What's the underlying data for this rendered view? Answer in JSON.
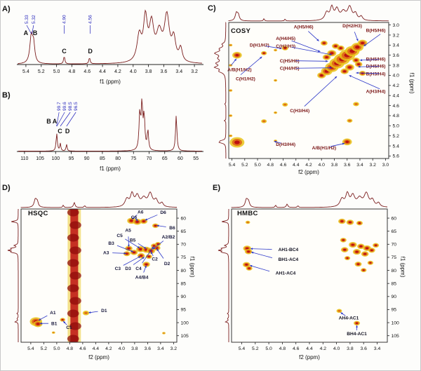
{
  "panels": {
    "A": {
      "label": "A)",
      "xlabel": "f1 (ppm)"
    },
    "B": {
      "label": "B)",
      "xlabel": "f1 (ppm)"
    },
    "C": {
      "label": "C)",
      "name": "COSY",
      "xlabel": "f2 (ppm)",
      "ylabel": "f1 (ppm)"
    },
    "D": {
      "label": "D)",
      "name": "HSQC",
      "xlabel": "f2 (ppm)",
      "ylabel": "f1 (ppm)"
    },
    "E": {
      "label": "E)",
      "name": "HMBC",
      "xlabel": "f2 (ppm)",
      "ylabel": "f1 (ppm)"
    }
  },
  "colors": {
    "spectrum": "#7b1e1e",
    "shift_label": "#2222bb",
    "contour_outer": "#e9c419",
    "contour_mid": "#e06a16",
    "contour_inner": "#bc1111",
    "arrow": "#2a35c8"
  },
  "spectra": {
    "h1": {
      "peaks": [
        [
          5.33,
          0.52,
          0.022
        ],
        [
          5.3,
          0.34,
          0.018
        ],
        [
          4.9,
          0.15,
          0.01
        ],
        [
          4.57,
          0.12,
          0.01
        ],
        [
          3.92,
          0.5,
          0.035
        ],
        [
          3.84,
          0.8,
          0.03
        ],
        [
          3.76,
          0.68,
          0.035
        ],
        [
          3.66,
          0.52,
          0.045
        ],
        [
          3.56,
          0.85,
          0.04
        ],
        [
          3.47,
          0.42,
          0.03
        ],
        [
          3.38,
          0.26,
          0.025
        ]
      ]
    },
    "c13": {
      "peaks": [
        [
          99.7,
          0.17,
          0.22
        ],
        [
          99.6,
          0.15,
          0.22
        ],
        [
          98.5,
          0.13,
          0.2
        ],
        [
          96.5,
          0.12,
          0.2
        ],
        [
          73.0,
          0.62,
          0.28
        ],
        [
          72.3,
          0.78,
          0.28
        ],
        [
          71.6,
          0.58,
          0.28
        ],
        [
          70.4,
          0.34,
          0.26
        ],
        [
          61.3,
          0.62,
          0.26
        ]
      ]
    }
  },
  "chart_data": [
    {
      "id": "A",
      "type": "line",
      "kind": "1H NMR spectrum",
      "x_label": "f1 (ppm)",
      "x_range": [
        5.5,
        3.1
      ],
      "x_ticks": [
        "5.4",
        "5.2",
        "5.0",
        "4.8",
        "4.6",
        "4.4",
        "4.2",
        "4.0",
        "3.8",
        "3.6",
        "3.4",
        "3.2"
      ],
      "spectrum_ref": "h1",
      "shift_labels": [
        {
          "text": "5.33",
          "at": 5.33,
          "lx": 5.39
        },
        {
          "text": "5.32",
          "at": 5.32,
          "lx": 5.3
        },
        {
          "text": "4.90",
          "at": 4.9
        },
        {
          "text": "4.56",
          "at": 4.56
        }
      ],
      "letters": [
        {
          "text": "A",
          "x": 5.4,
          "y": 50
        },
        {
          "text": "B",
          "x": 5.28,
          "y": 50
        },
        {
          "text": "C",
          "x": 4.9,
          "y": 76
        },
        {
          "text": "D",
          "x": 4.56,
          "y": 76
        }
      ]
    },
    {
      "id": "B",
      "type": "line",
      "kind": "13C NMR spectrum",
      "x_label": "f1 (ppm)",
      "x_range": [
        112,
        53
      ],
      "x_ticks": [
        "110",
        "105",
        "100",
        "95",
        "90",
        "85",
        "80",
        "75",
        "70",
        "65",
        "60",
        "55"
      ],
      "spectrum_ref": "c13",
      "shift_labels": [
        {
          "text": "99.7",
          "at": 99.7,
          "lx": 98.9
        },
        {
          "text": "99.6",
          "at": 99.6,
          "lx": 97.1
        },
        {
          "text": "98.5",
          "at": 98.5,
          "lx": 95.3
        },
        {
          "text": "96.5",
          "at": 96.5,
          "lx": 93.5
        }
      ],
      "letters": [
        {
          "text": "B",
          "x": 102.2,
          "y": 52
        },
        {
          "text": "A",
          "x": 100.3,
          "y": 52
        },
        {
          "text": "C",
          "x": 98.6,
          "y": 66
        },
        {
          "text": "D",
          "x": 96.2,
          "y": 66
        }
      ]
    },
    {
      "id": "C",
      "type": "heatmap",
      "kind": "COSY 2D spectrum",
      "x_label": "f2 (ppm)",
      "y_label": "f1 (ppm)",
      "x_range": [
        5.45,
        2.95
      ],
      "y_range": [
        2.95,
        5.65
      ],
      "x_ticks": [
        "5.4",
        "5.2",
        "5.0",
        "4.8",
        "4.6",
        "4.4",
        "4.2",
        "4.0",
        "3.8",
        "3.6",
        "3.4",
        "3.2",
        "3.0"
      ],
      "y_ticks": [
        "3.0",
        "3.2",
        "3.4",
        "3.6",
        "3.8",
        "4.0",
        "4.2",
        "4.4",
        "4.6",
        "4.8",
        "5.0",
        "5.2",
        "5.4",
        "5.6"
      ],
      "top_trace_ref": "h1",
      "left_trace_ref": "h1",
      "label_color": "#7a1515",
      "peaks": [
        [
          5.32,
          5.33,
          5.5
        ],
        [
          4.9,
          4.91,
          2.2,
          1
        ],
        [
          4.57,
          4.58,
          2.2,
          1
        ],
        [
          4.0,
          4.0,
          3.2
        ],
        [
          3.92,
          3.92,
          4.2
        ],
        [
          3.84,
          3.84,
          5.0
        ],
        [
          3.76,
          3.76,
          5.6
        ],
        [
          3.68,
          3.68,
          6.0
        ],
        [
          3.6,
          3.6,
          6.0
        ],
        [
          3.52,
          3.52,
          5.4
        ],
        [
          3.44,
          3.44,
          4.6
        ],
        [
          3.36,
          3.36,
          3.6
        ],
        [
          3.84,
          3.56,
          3.4
        ],
        [
          3.56,
          3.84,
          3.4
        ],
        [
          3.92,
          3.64,
          3.0
        ],
        [
          3.64,
          3.92,
          3.0
        ],
        [
          3.78,
          3.42,
          2.8
        ],
        [
          3.42,
          3.78,
          2.8
        ],
        [
          3.96,
          3.36,
          2.6
        ],
        [
          3.36,
          3.96,
          2.6
        ],
        [
          3.7,
          3.46,
          2.8
        ],
        [
          3.46,
          3.7,
          2.8
        ],
        [
          5.32,
          3.6,
          3.6
        ],
        [
          3.6,
          5.32,
          3.6
        ],
        [
          4.9,
          3.56,
          2.2
        ],
        [
          3.56,
          4.9,
          2.2,
          1
        ],
        [
          4.57,
          3.46,
          2.4
        ],
        [
          3.46,
          4.57,
          2.4,
          1
        ],
        [
          5.42,
          3.4,
          1.4,
          1
        ],
        [
          5.42,
          3.8,
          1.4,
          1
        ],
        [
          5.42,
          4.3,
          1.4,
          1
        ],
        [
          5.42,
          4.8,
          1.4,
          1
        ],
        [
          5.42,
          5.2,
          1.4,
          1
        ],
        [
          4.72,
          3.5,
          1.4,
          1
        ],
        [
          4.72,
          4.1,
          1.4,
          1
        ],
        [
          4.72,
          4.74,
          1.4,
          1
        ],
        [
          4.72,
          5.3,
          1.4,
          1
        ]
      ],
      "labels": [
        [
          "A(H5/H6)",
          4.28,
          3.07,
          4.04,
          3.32,
          "middle"
        ],
        [
          "D(H2/H3)",
          3.52,
          3.05,
          3.43,
          3.32,
          "middle"
        ],
        [
          "B(H5/H6)",
          3.0,
          3.14,
          3.34,
          3.42,
          "end"
        ],
        [
          "D(H1/H2)",
          4.97,
          3.43,
          4.62,
          3.47,
          "middle"
        ],
        [
          "A(H4/H5)",
          4.56,
          3.3,
          4.02,
          3.53,
          "middle"
        ],
        [
          "C(H2/H3)",
          4.56,
          3.45,
          3.84,
          3.59,
          "middle"
        ],
        [
          "C(H5/H6)",
          4.5,
          3.74,
          3.9,
          3.72,
          "middle"
        ],
        [
          "C(H4/H5)",
          4.5,
          3.89,
          3.84,
          3.85,
          "middle"
        ],
        [
          "B(H5/H6)",
          3.0,
          3.71,
          3.4,
          3.7,
          "end"
        ],
        [
          "D(H5/H6)",
          3.0,
          3.85,
          3.43,
          3.83,
          "end"
        ],
        [
          "B(H3/H4)",
          3.0,
          4.0,
          3.46,
          3.95,
          "end"
        ],
        [
          "A(H3/H4)",
          3.0,
          4.35,
          3.57,
          4.0,
          "end"
        ],
        [
          "C(H3/H4)",
          4.34,
          4.73,
          3.76,
          4.02,
          "middle"
        ],
        [
          "D(H3/H4)",
          4.56,
          5.4,
          4.74,
          5.31,
          "middle"
        ],
        [
          "A/B(H1/H2)",
          5.47,
          3.92,
          5.33,
          3.67,
          "start"
        ],
        [
          "C(H1/H2)",
          5.34,
          4.1,
          4.93,
          3.63,
          "start"
        ],
        [
          "A/B(H1/H2)",
          3.96,
          5.47,
          3.64,
          5.35,
          "middle"
        ]
      ]
    },
    {
      "id": "D",
      "type": "heatmap",
      "kind": "HSQC 2D spectrum",
      "x_label": "f2 (ppm)",
      "y_label": "f1 (ppm)",
      "x_range": [
        5.55,
        3.15
      ],
      "y_range": [
        56.5,
        107.5
      ],
      "x_ticks": [
        "5.4",
        "5.2",
        "5.0",
        "4.8",
        "4.6",
        "4.4",
        "4.2",
        "4.0",
        "3.8",
        "3.6",
        "3.4",
        "3.2"
      ],
      "y_ticks": [
        "60",
        "65",
        "70",
        "75",
        "80",
        "85",
        "90",
        "95",
        "100",
        "105"
      ],
      "top_trace_ref": "h1",
      "left_trace_ref": "c13",
      "top_trace_extra": [
        [
          4.73,
          0.32,
          0.014
        ]
      ],
      "streaks": [
        {
          "x": 4.73,
          "w": 0.06
        }
      ],
      "label_color": "#16163a",
      "peaks": [
        [
          5.32,
          99.6,
          4.6
        ],
        [
          5.29,
          100.5,
          3.4
        ],
        [
          4.91,
          98.9,
          2.0
        ],
        [
          4.55,
          96.3,
          2.6,
          1
        ],
        [
          3.85,
          61.0,
          3.2
        ],
        [
          3.76,
          61.4,
          3.2
        ],
        [
          3.66,
          61.2,
          2.8
        ],
        [
          3.48,
          62.9,
          2.4
        ],
        [
          3.89,
          71.6,
          2.8
        ],
        [
          3.71,
          71.9,
          3.2
        ],
        [
          3.62,
          72.1,
          3.2
        ],
        [
          3.55,
          72.5,
          3.2
        ],
        [
          3.46,
          71.4,
          2.8
        ],
        [
          3.81,
          73.1,
          2.8
        ],
        [
          3.92,
          73.6,
          2.6
        ],
        [
          3.7,
          74.4,
          2.8
        ],
        [
          3.58,
          74.7,
          2.4
        ],
        [
          3.5,
          70.6,
          2.4
        ],
        [
          3.62,
          77.7,
          2.8
        ],
        [
          3.44,
          69.9,
          2.2
        ],
        [
          5.05,
          103.8,
          1.3,
          1
        ],
        [
          3.35,
          104.0,
          1.3,
          1
        ]
      ],
      "labels": [
        [
          "A6",
          3.71,
          58.2,
          3.84,
          60.4,
          "middle"
        ],
        [
          "C6",
          3.81,
          60.2,
          3.75,
          61.1,
          "middle"
        ],
        [
          "D6",
          3.36,
          58.4,
          3.64,
          60.8,
          "middle"
        ],
        [
          "A5",
          3.9,
          65.2,
          3.89,
          71.0,
          "middle"
        ],
        [
          "C5",
          4.03,
          67.3,
          3.72,
          71.5,
          "middle"
        ],
        [
          "B5",
          3.83,
          69.0,
          3.62,
          71.7,
          "middle"
        ],
        [
          "B6",
          3.22,
          64.3,
          3.46,
          62.8,
          "middle"
        ],
        [
          "A2/B2",
          3.28,
          67.8,
          3.52,
          71.9,
          "middle"
        ],
        [
          "B3",
          4.16,
          70.2,
          3.82,
          72.9,
          "middle"
        ],
        [
          "A3",
          4.24,
          73.8,
          3.93,
          73.5,
          "middle"
        ],
        [
          "C3",
          4.06,
          79.8,
          3.71,
          74.6,
          "middle"
        ],
        [
          "D3",
          3.9,
          79.8,
          3.65,
          74.9,
          "middle"
        ],
        [
          "C4",
          3.74,
          79.8,
          3.51,
          70.9,
          "middle"
        ],
        [
          "C2",
          3.49,
          76.2,
          3.55,
          72.8,
          "middle"
        ],
        [
          "D2",
          3.3,
          78.0,
          3.46,
          71.7,
          "middle"
        ],
        [
          "A4/B4",
          3.69,
          83.2,
          3.62,
          78.1,
          "middle"
        ],
        [
          "A1",
          5.06,
          96.8,
          5.28,
          99.1,
          "middle"
        ],
        [
          "B1",
          5.04,
          100.9,
          5.26,
          100.3,
          "middle"
        ],
        [
          "C1",
          4.81,
          102.4,
          4.9,
          99.4,
          "middle"
        ],
        [
          "D1",
          4.27,
          96.0,
          4.51,
          96.2,
          "middle"
        ]
      ]
    },
    {
      "id": "E",
      "type": "heatmap",
      "kind": "HMBC 2D spectrum",
      "x_label": "f2 (ppm)",
      "y_label": "f1 (ppm)",
      "x_range": [
        5.55,
        3.25
      ],
      "y_range": [
        56.5,
        107.5
      ],
      "x_ticks": [
        "5.4",
        "5.2",
        "5.0",
        "4.8",
        "4.6",
        "4.4",
        "4.2",
        "4.0",
        "3.8",
        "3.6",
        "3.4"
      ],
      "y_ticks": [
        "60",
        "65",
        "70",
        "75",
        "80",
        "85",
        "90",
        "95",
        "100",
        "105"
      ],
      "top_trace_ref": "h1",
      "left_trace_ref": "c13",
      "top_trace_extra": [
        [
          4.73,
          0.22,
          0.014
        ]
      ],
      "label_color": "#101020",
      "peaks": [
        [
          5.32,
          71.6,
          3.0
        ],
        [
          5.3,
          72.8,
          2.8
        ],
        [
          5.33,
          77.8,
          2.8
        ],
        [
          5.29,
          79.2,
          2.4
        ],
        [
          5.31,
          61.6,
          1.8,
          1
        ],
        [
          3.92,
          61.2,
          2.8
        ],
        [
          3.8,
          61.6,
          2.8
        ],
        [
          3.66,
          61.9,
          2.4
        ],
        [
          3.9,
          68.4,
          2.4
        ],
        [
          3.76,
          70.2,
          3.0
        ],
        [
          3.64,
          70.8,
          2.8
        ],
        [
          3.55,
          71.5,
          3.0
        ],
        [
          3.88,
          72.1,
          2.8
        ],
        [
          3.7,
          72.9,
          3.0
        ],
        [
          3.58,
          73.7,
          2.8
        ],
        [
          3.48,
          72.3,
          2.6
        ],
        [
          3.42,
          70.4,
          2.4
        ],
        [
          3.68,
          77.6,
          2.6
        ],
        [
          3.6,
          79.9,
          2.2
        ],
        [
          3.5,
          77.1,
          2.2
        ],
        [
          3.84,
          75.3,
          2.2
        ],
        [
          3.96,
          95.5,
          2.2,
          1
        ],
        [
          3.7,
          100.2,
          2.4
        ]
      ],
      "labels": [
        [
          "AH1-BC4",
          4.86,
          72.6,
          5.27,
          71.7,
          "start"
        ],
        [
          "BH1-AC4",
          4.86,
          76.4,
          5.26,
          73.0,
          "start"
        ],
        [
          "AH1-AC4",
          4.9,
          81.6,
          5.28,
          78.1,
          "start"
        ],
        [
          "AH4-AC1",
          3.82,
          98.8,
          3.94,
          96.1,
          "middle"
        ],
        [
          "BH4-AC1",
          3.7,
          104.8,
          3.7,
          101.0,
          "middle"
        ]
      ]
    }
  ]
}
